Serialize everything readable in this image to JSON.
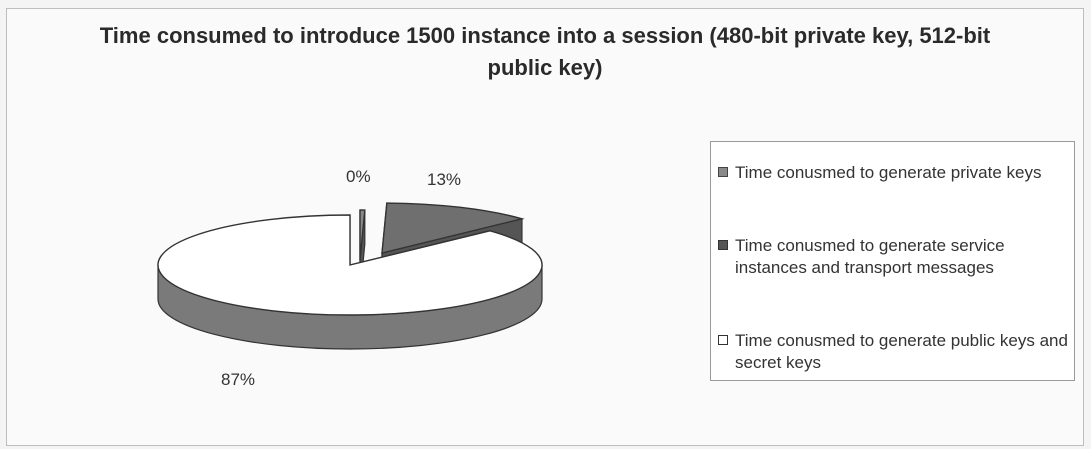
{
  "chart_data": {
    "type": "pie",
    "title": "Time consumed to introduce 1500 instance into a session (480-bit private key, 512-bit public key)",
    "slices": [
      {
        "name": "Time conusmed to generate private keys",
        "value": 0.4,
        "label": "0%",
        "color": "#888888"
      },
      {
        "name": "Time conusmed to generate service instances and transport messages",
        "value": 12.6,
        "label": "13%",
        "color": "#707070"
      },
      {
        "name": "Time conusmed to generate public keys and secret keys",
        "value": 87,
        "label": "87%",
        "color": "#ffffff"
      }
    ],
    "legend_position": "right",
    "style": "3d-exploded"
  }
}
